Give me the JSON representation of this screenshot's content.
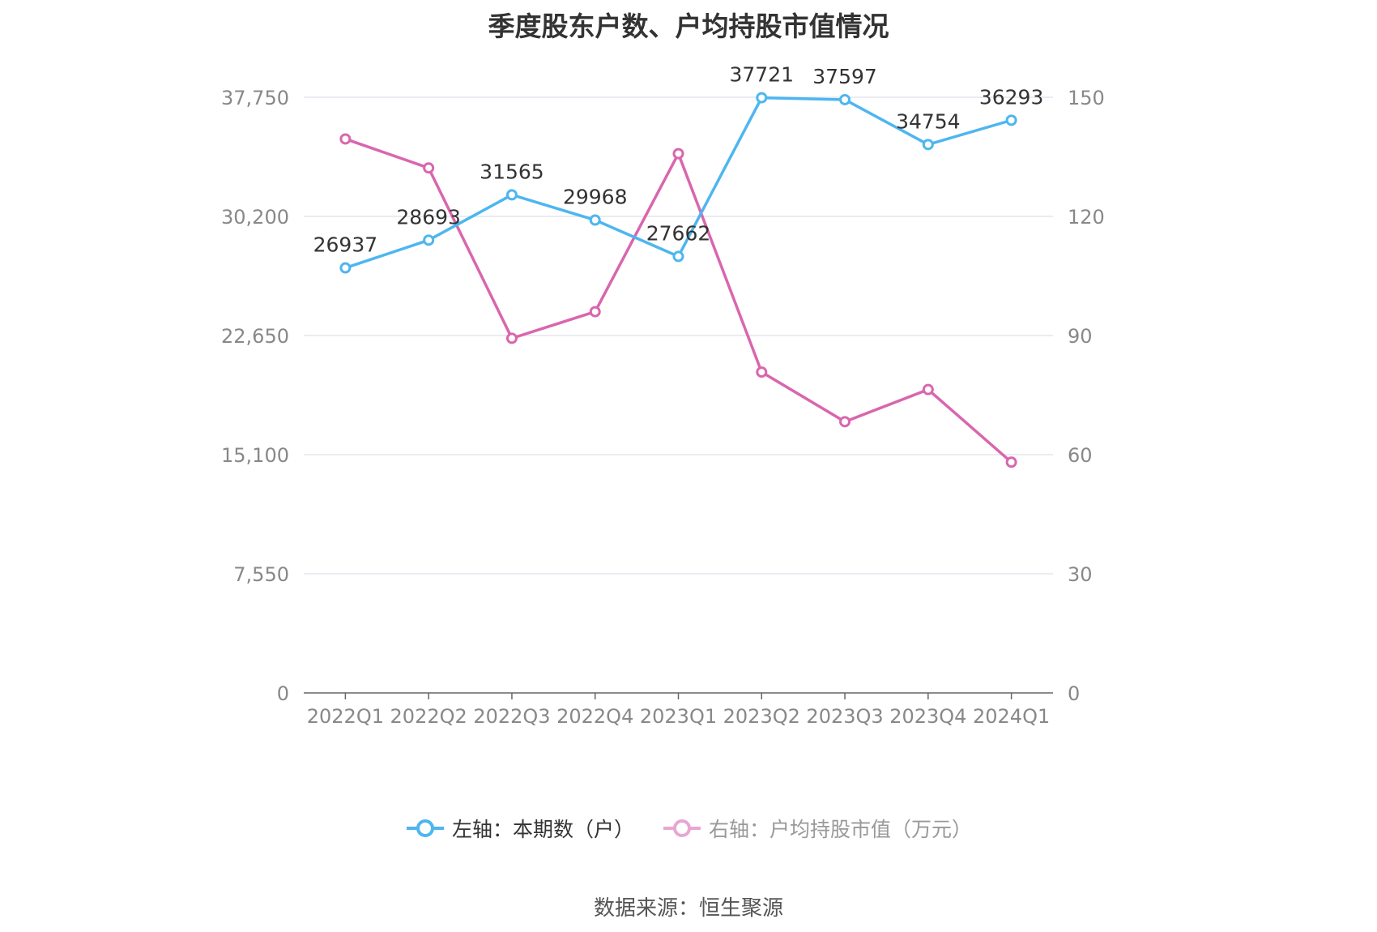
{
  "title": "季度股东户数、户均持股市值情况",
  "source": "数据来源：恒生聚源",
  "legend": [
    {
      "label": "左轴：本期数（户）",
      "color": "#4db6f0",
      "state": "active"
    },
    {
      "label": "右轴：户均持股市值（万元）",
      "color": "#e8a6d4",
      "state": "inactive"
    }
  ],
  "chart_data": {
    "type": "line",
    "categories": [
      "2022Q1",
      "2022Q2",
      "2022Q3",
      "2022Q4",
      "2023Q1",
      "2023Q2",
      "2023Q3",
      "2023Q4",
      "2024Q1"
    ],
    "left_axis": {
      "ylim": [
        0,
        37750
      ],
      "ticks": [
        "0",
        "7,550",
        "15,100",
        "22,650",
        "30,200",
        "37,750"
      ]
    },
    "right_axis": {
      "ylim": [
        0,
        150
      ],
      "ticks": [
        "0",
        "30",
        "60",
        "90",
        "120",
        "150"
      ]
    },
    "grid": true,
    "legend_position": "bottom-center",
    "series": [
      {
        "name": "左轴：本期数（户）",
        "axis": "left",
        "color": "#4db6f0",
        "values": [
          26937,
          28693,
          31565,
          29968,
          27662,
          37721,
          37597,
          34754,
          36293
        ],
        "labels": [
          "26937",
          "28693",
          "31565",
          "29968",
          "27662",
          "37721",
          "37597",
          "34754",
          "36293"
        ]
      },
      {
        "name": "右轴：户均持股市值（万元）",
        "axis": "right",
        "color": "#d966ae",
        "values": [
          139.5,
          132.2,
          89.3,
          96.0,
          135.8,
          80.8,
          68.3,
          76.4,
          58.1
        ]
      }
    ]
  }
}
